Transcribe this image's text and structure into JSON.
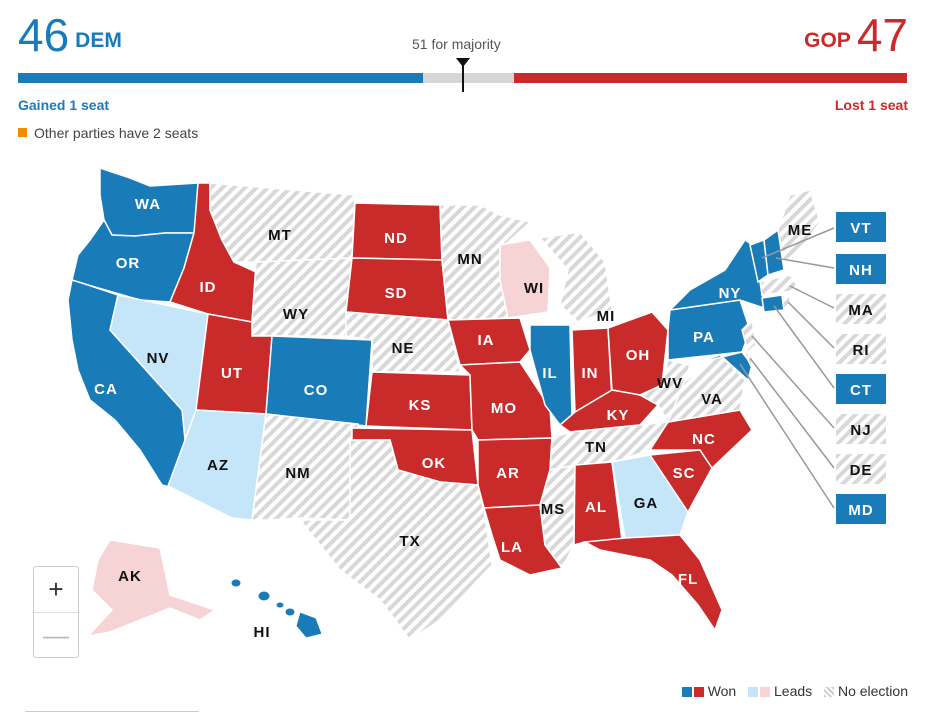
{
  "header": {
    "dem_count": "46",
    "dem_label": "DEM",
    "gop_count": "47",
    "gop_label": "GOP",
    "majority_label": "51 for majority",
    "gained_label": "Gained 1 seat",
    "lost_label": "Lost 1 seat",
    "others_label": "Other parties have 2 seats"
  },
  "bar": {
    "dem_seats": 46,
    "gop_seats": 47,
    "total_seats": 100
  },
  "colors": {
    "dem": "#1a7bb9",
    "gop": "#c92a2a",
    "dem_lead": "#c5e5f8",
    "gop_lead": "#f6d3d4",
    "other": "#f08c00",
    "no_election": "#d8d8d8"
  },
  "states": {
    "WA": "WA",
    "OR": "OR",
    "CA": "CA",
    "NV": "NV",
    "ID": "ID",
    "MT": "MT",
    "WY": "WY",
    "UT": "UT",
    "AZ": "AZ",
    "CO": "CO",
    "NM": "NM",
    "ND": "ND",
    "SD": "SD",
    "NE": "NE",
    "KS": "KS",
    "OK": "OK",
    "TX": "TX",
    "MN": "MN",
    "IA": "IA",
    "MO": "MO",
    "AR": "AR",
    "LA": "LA",
    "WI": "WI",
    "IL": "IL",
    "MI": "MI",
    "IN": "IN",
    "OH": "OH",
    "KY": "KY",
    "TN": "TN",
    "MS": "MS",
    "AL": "AL",
    "GA": "GA",
    "FL": "FL",
    "SC": "SC",
    "NC": "NC",
    "VA": "VA",
    "WV": "WV",
    "PA": "PA",
    "NY": "NY",
    "ME": "ME",
    "AK": "AK",
    "HI": "HI"
  },
  "callouts": {
    "VT": "VT",
    "NH": "NH",
    "MA": "MA",
    "RI": "RI",
    "CT": "CT",
    "NJ": "NJ",
    "DE": "DE",
    "MD": "MD"
  },
  "zoom": {
    "in_label": "+",
    "out_label": "—"
  },
  "legend": {
    "won_label": "Won",
    "leads_label": "Leads",
    "no_election_label": "No election"
  }
}
